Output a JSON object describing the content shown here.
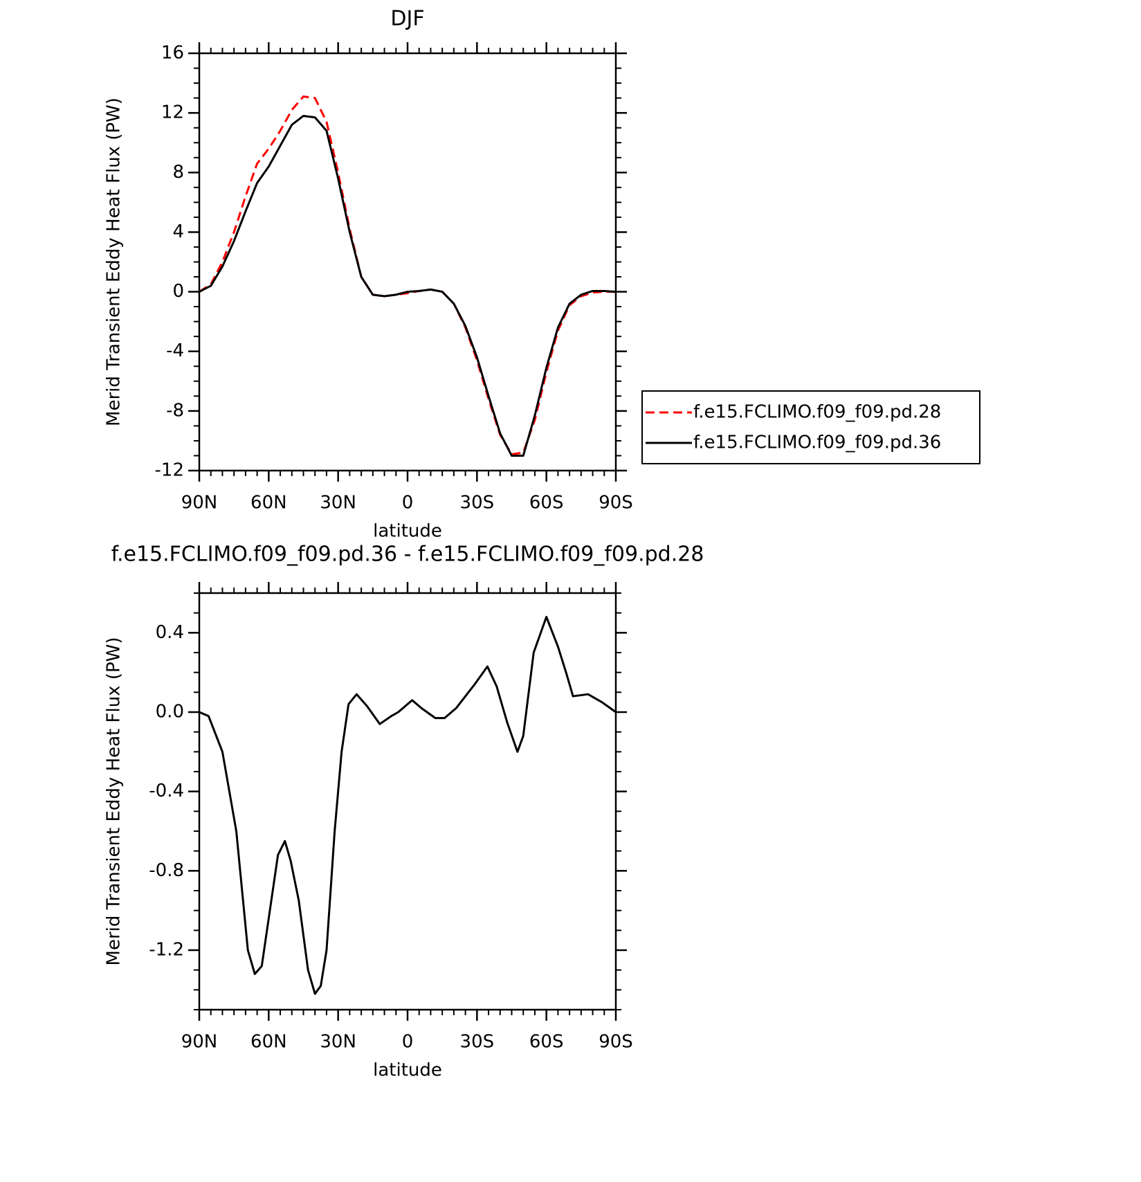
{
  "chart_data": [
    {
      "type": "line",
      "title": "DJF",
      "xlabel": "latitude",
      "ylabel": "Merid Transient Eddy Heat Flux (PW)",
      "x": [
        90,
        85,
        80,
        75,
        70,
        65,
        60,
        55,
        50,
        45,
        40,
        35,
        30,
        25,
        20,
        15,
        10,
        5,
        0,
        -5,
        -10,
        -15,
        -20,
        -25,
        -30,
        -35,
        -40,
        -45,
        -50,
        -55,
        -60,
        -65,
        -70,
        -75,
        -80,
        -85,
        -90
      ],
      "series": [
        {
          "name": "f.e15.FCLIMO.f09_f09.pd.28",
          "color": "#ff0000",
          "linestyle": "dashed",
          "values": [
            0,
            0.5,
            2.0,
            4.0,
            6.4,
            8.6,
            9.6,
            10.8,
            12.2,
            13.1,
            13.0,
            11.4,
            8.0,
            4.2,
            1.0,
            -0.2,
            -0.3,
            -0.2,
            -0.1,
            0.05,
            0.15,
            0.0,
            -0.8,
            -2.4,
            -4.6,
            -7.2,
            -9.6,
            -10.9,
            -10.8,
            -8.6,
            -5.4,
            -2.6,
            -0.9,
            -0.3,
            -0.05,
            0,
            0
          ]
        },
        {
          "name": "f.e15.FCLIMO.f09_f09.pd.36",
          "color": "#000000",
          "linestyle": "solid",
          "values": [
            0,
            0.4,
            1.7,
            3.4,
            5.4,
            7.3,
            8.4,
            9.8,
            11.2,
            11.8,
            11.7,
            10.8,
            7.6,
            4.0,
            1.0,
            -0.2,
            -0.3,
            -0.2,
            0,
            0.05,
            0.15,
            0,
            -0.8,
            -2.3,
            -4.4,
            -7.0,
            -9.5,
            -11.0,
            -11.0,
            -8.3,
            -5.1,
            -2.4,
            -0.8,
            -0.2,
            0.05,
            0.05,
            0
          ]
        }
      ],
      "xlim": [
        90,
        -90
      ],
      "xticks": [
        {
          "value": 90,
          "label": "90N"
        },
        {
          "value": 60,
          "label": "60N"
        },
        {
          "value": 30,
          "label": "30N"
        },
        0,
        {
          "value": -30,
          "label": "30S"
        },
        {
          "value": -60,
          "label": "60S"
        },
        {
          "value": -90,
          "label": "90S"
        }
      ],
      "ylim": [
        -12,
        16
      ],
      "yticks": [
        16,
        12,
        8,
        4,
        0,
        -4,
        -8,
        -12
      ],
      "legend": "right"
    },
    {
      "type": "line",
      "title": "f.e15.FCLIMO.f09_f09.pd.36 - f.e15.FCLIMO.f09_f09.pd.28",
      "xlabel": "latitude",
      "ylabel": "Merid Transient Eddy Heat Flux (PW)",
      "x": [
        90,
        86,
        80,
        74,
        69,
        66,
        63,
        59.5,
        56,
        53,
        50.5,
        47,
        43,
        40,
        37.5,
        35,
        31.5,
        28.5,
        25.5,
        22,
        17.5,
        12,
        7,
        4,
        -2,
        -6,
        -12,
        -16,
        -21,
        -25,
        -29,
        -34.5,
        -38.5,
        -43,
        -47.5,
        -50,
        -54.5,
        -60,
        -65,
        -68.5,
        -71.5,
        -78,
        -84,
        -90
      ],
      "values": [
        0,
        -0.02,
        -0.2,
        -0.6,
        -1.2,
        -1.32,
        -1.28,
        -1.0,
        -0.72,
        -0.65,
        -0.75,
        -0.95,
        -1.3,
        -1.42,
        -1.38,
        -1.2,
        -0.6,
        -0.2,
        0.04,
        0.09,
        0.03,
        -0.06,
        -0.02,
        0.0,
        0.06,
        0.02,
        -0.03,
        -0.03,
        0.02,
        0.08,
        0.14,
        0.23,
        0.13,
        -0.05,
        -0.2,
        -0.12,
        0.3,
        0.48,
        0.33,
        0.2,
        0.08,
        0.09,
        0.05,
        0
      ],
      "color": "#000000",
      "xlim": [
        90,
        -90
      ],
      "xticks": [
        {
          "value": 90,
          "label": "90N"
        },
        {
          "value": 60,
          "label": "60N"
        },
        {
          "value": 30,
          "label": "30N"
        },
        0,
        {
          "value": -30,
          "label": "30S"
        },
        {
          "value": -60,
          "label": "60S"
        },
        {
          "value": -90,
          "label": "90S"
        }
      ],
      "ylim": [
        -1.5,
        0.6
      ],
      "yticks": [
        {
          "value": 0.4,
          "label": "0.4"
        },
        {
          "value": 0,
          "label": "0.0"
        },
        {
          "value": -0.4,
          "label": "-0.4"
        },
        {
          "value": -0.8,
          "label": "-0.8"
        },
        {
          "value": -1.2,
          "label": "-1.2"
        }
      ]
    }
  ]
}
